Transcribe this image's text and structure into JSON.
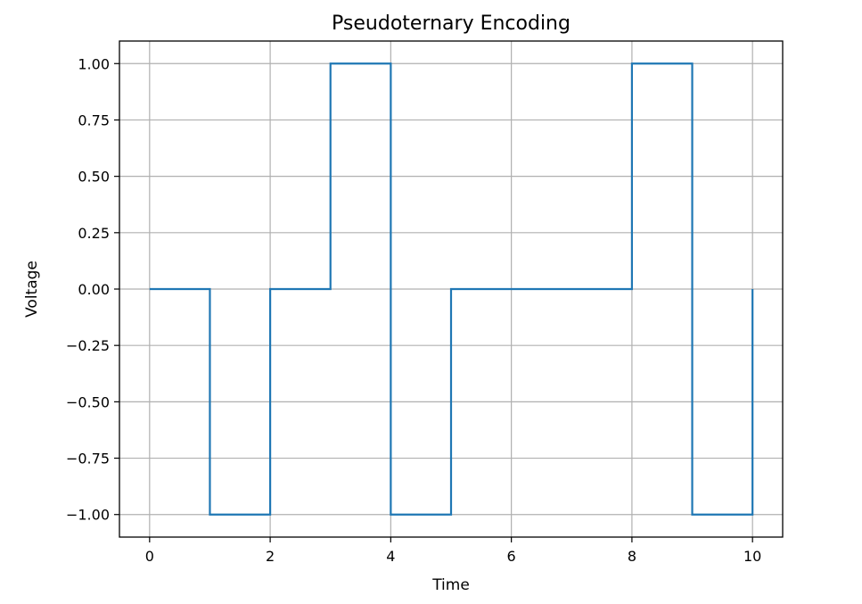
{
  "chart_data": {
    "type": "line",
    "drawstyle": "steps-post",
    "title": "Pseudoternary Encoding",
    "xlabel": "Time",
    "ylabel": "Voltage",
    "xlim": [
      -0.5,
      10.5
    ],
    "ylim": [
      -1.1,
      1.1
    ],
    "x_ticks": [
      0,
      2,
      4,
      6,
      8,
      10
    ],
    "x_tick_labels": [
      "0",
      "2",
      "4",
      "6",
      "8",
      "10"
    ],
    "y_ticks": [
      1.0,
      0.75,
      0.5,
      0.25,
      0.0,
      -0.25,
      -0.5,
      -0.75,
      -1.0
    ],
    "y_tick_labels": [
      "1.00",
      "0.75",
      "0.50",
      "0.25",
      "0.00",
      "−0.25",
      "−0.50",
      "−0.75",
      "−1.00"
    ],
    "grid": true,
    "series": [
      {
        "color": "#1f77b4",
        "x": [
          0,
          1,
          2,
          3,
          4,
          5,
          6,
          7,
          8,
          9,
          10
        ],
        "y": [
          0,
          -1,
          0,
          1,
          -1,
          0,
          0,
          0,
          1,
          -1,
          0
        ]
      }
    ]
  }
}
